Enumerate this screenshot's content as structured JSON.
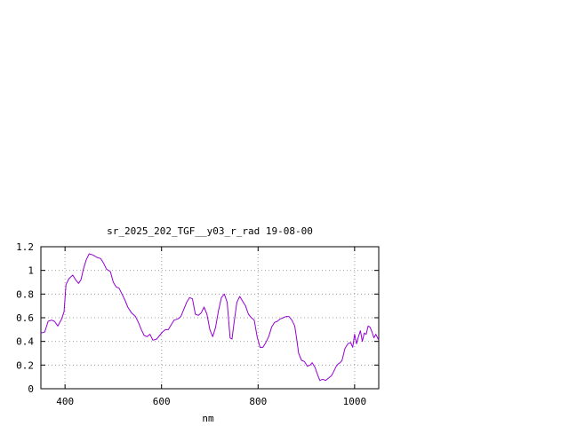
{
  "chart_data": {
    "type": "line",
    "title": "sr_2025_202_TGF__y03_r_rad 19-08-00",
    "xlabel": "nm",
    "ylabel": "",
    "xlim": [
      350,
      1050
    ],
    "ylim": [
      0,
      1.2
    ],
    "x_ticks": [
      400,
      600,
      800,
      1000
    ],
    "x_tick_labels": [
      "400",
      "600",
      "800",
      "1000"
    ],
    "y_ticks": [
      0,
      0.2,
      0.4,
      0.6,
      0.8,
      1.0,
      1.2
    ],
    "y_tick_labels": [
      "0",
      "0.2",
      "0.4",
      "0.6",
      "0.8",
      "1",
      "1.2"
    ],
    "grid": true,
    "legend": "none",
    "series": [
      {
        "color": "#9400d3",
        "points": [
          [
            350,
            0.47
          ],
          [
            358,
            0.48
          ],
          [
            365,
            0.57
          ],
          [
            372,
            0.58
          ],
          [
            378,
            0.57
          ],
          [
            385,
            0.53
          ],
          [
            393,
            0.59
          ],
          [
            398,
            0.65
          ],
          [
            402,
            0.88
          ],
          [
            408,
            0.93
          ],
          [
            416,
            0.96
          ],
          [
            422,
            0.92
          ],
          [
            428,
            0.89
          ],
          [
            433,
            0.92
          ],
          [
            438,
            1.01
          ],
          [
            444,
            1.09
          ],
          [
            450,
            1.14
          ],
          [
            458,
            1.13
          ],
          [
            466,
            1.11
          ],
          [
            474,
            1.1
          ],
          [
            480,
            1.06
          ],
          [
            486,
            1.01
          ],
          [
            494,
            0.99
          ],
          [
            500,
            0.9
          ],
          [
            506,
            0.86
          ],
          [
            512,
            0.85
          ],
          [
            518,
            0.8
          ],
          [
            524,
            0.75
          ],
          [
            530,
            0.69
          ],
          [
            538,
            0.64
          ],
          [
            546,
            0.61
          ],
          [
            552,
            0.56
          ],
          [
            558,
            0.5
          ],
          [
            564,
            0.45
          ],
          [
            570,
            0.44
          ],
          [
            576,
            0.46
          ],
          [
            582,
            0.41
          ],
          [
            590,
            0.42
          ],
          [
            596,
            0.45
          ],
          [
            602,
            0.48
          ],
          [
            608,
            0.5
          ],
          [
            614,
            0.5
          ],
          [
            620,
            0.54
          ],
          [
            626,
            0.58
          ],
          [
            634,
            0.59
          ],
          [
            640,
            0.61
          ],
          [
            646,
            0.67
          ],
          [
            652,
            0.73
          ],
          [
            658,
            0.77
          ],
          [
            664,
            0.76
          ],
          [
            670,
            0.63
          ],
          [
            676,
            0.62
          ],
          [
            682,
            0.64
          ],
          [
            688,
            0.69
          ],
          [
            694,
            0.63
          ],
          [
            700,
            0.5
          ],
          [
            706,
            0.44
          ],
          [
            712,
            0.52
          ],
          [
            718,
            0.66
          ],
          [
            724,
            0.77
          ],
          [
            730,
            0.8
          ],
          [
            736,
            0.73
          ],
          [
            742,
            0.43
          ],
          [
            746,
            0.42
          ],
          [
            750,
            0.55
          ],
          [
            756,
            0.73
          ],
          [
            762,
            0.78
          ],
          [
            768,
            0.74
          ],
          [
            774,
            0.7
          ],
          [
            780,
            0.63
          ],
          [
            786,
            0.6
          ],
          [
            792,
            0.58
          ],
          [
            798,
            0.44
          ],
          [
            804,
            0.35
          ],
          [
            810,
            0.35
          ],
          [
            816,
            0.39
          ],
          [
            822,
            0.44
          ],
          [
            828,
            0.52
          ],
          [
            834,
            0.56
          ],
          [
            840,
            0.57
          ],
          [
            846,
            0.59
          ],
          [
            852,
            0.6
          ],
          [
            858,
            0.61
          ],
          [
            864,
            0.61
          ],
          [
            870,
            0.58
          ],
          [
            876,
            0.53
          ],
          [
            880,
            0.42
          ],
          [
            884,
            0.3
          ],
          [
            890,
            0.24
          ],
          [
            896,
            0.23
          ],
          [
            902,
            0.19
          ],
          [
            908,
            0.2
          ],
          [
            912,
            0.22
          ],
          [
            918,
            0.18
          ],
          [
            924,
            0.11
          ],
          [
            928,
            0.07
          ],
          [
            934,
            0.08
          ],
          [
            940,
            0.07
          ],
          [
            946,
            0.09
          ],
          [
            952,
            0.11
          ],
          [
            956,
            0.14
          ],
          [
            962,
            0.19
          ],
          [
            966,
            0.21
          ],
          [
            970,
            0.22
          ],
          [
            974,
            0.24
          ],
          [
            980,
            0.34
          ],
          [
            986,
            0.38
          ],
          [
            992,
            0.39
          ],
          [
            996,
            0.35
          ],
          [
            1000,
            0.46
          ],
          [
            1004,
            0.38
          ],
          [
            1008,
            0.44
          ],
          [
            1012,
            0.49
          ],
          [
            1016,
            0.4
          ],
          [
            1020,
            0.47
          ],
          [
            1024,
            0.46
          ],
          [
            1028,
            0.53
          ],
          [
            1032,
            0.52
          ],
          [
            1036,
            0.48
          ],
          [
            1040,
            0.43
          ],
          [
            1044,
            0.46
          ],
          [
            1050,
            0.41
          ]
        ]
      }
    ]
  }
}
